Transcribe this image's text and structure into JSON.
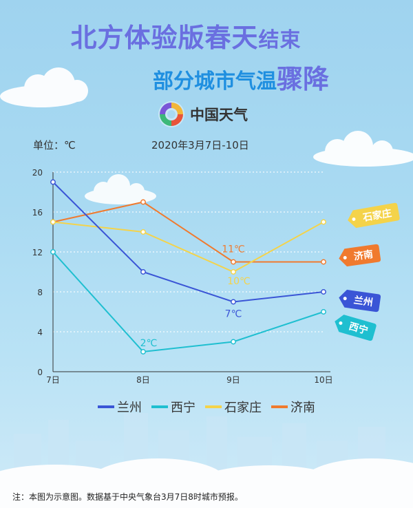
{
  "header": {
    "title_main": "北方体验版春天",
    "title_tail": "结束",
    "subtitle_main": "部分城市气温",
    "subtitle_tail": "骤降"
  },
  "brand": {
    "name": "中国天气",
    "logo_icon": "china-weather-logo-icon"
  },
  "unit_label": "单位：℃",
  "date_range": "2020年3月7日-10日",
  "note": "注：本图为示意图。数据基于中央气象台3月7日8时城市预报。",
  "colors": {
    "兰州": "#3a55d6",
    "西宁": "#1fbfd0",
    "石家庄": "#f4d34a",
    "济南": "#f07a2e"
  },
  "chart_data": {
    "type": "line",
    "title": "",
    "xlabel": "",
    "ylabel": "单位：℃",
    "categories": [
      "7日",
      "8日",
      "9日",
      "10日"
    ],
    "ylim": [
      0,
      20
    ],
    "yticks": [
      0,
      4,
      8,
      12,
      16,
      20
    ],
    "grid": true,
    "legend": "bottom",
    "series": [
      {
        "name": "兰州",
        "values": [
          19,
          10,
          7,
          8
        ]
      },
      {
        "name": "西宁",
        "values": [
          12,
          2,
          3,
          6
        ]
      },
      {
        "name": "石家庄",
        "values": [
          15,
          14,
          10,
          15
        ]
      },
      {
        "name": "济南",
        "values": [
          15,
          17,
          11,
          11
        ]
      }
    ],
    "annotations": [
      {
        "series": "济南",
        "index": 2,
        "text": "11℃"
      },
      {
        "series": "石家庄",
        "index": 2,
        "text": "10℃"
      },
      {
        "series": "兰州",
        "index": 2,
        "text": "7℃"
      },
      {
        "series": "西宁",
        "index": 1,
        "text": "2℃"
      }
    ]
  }
}
